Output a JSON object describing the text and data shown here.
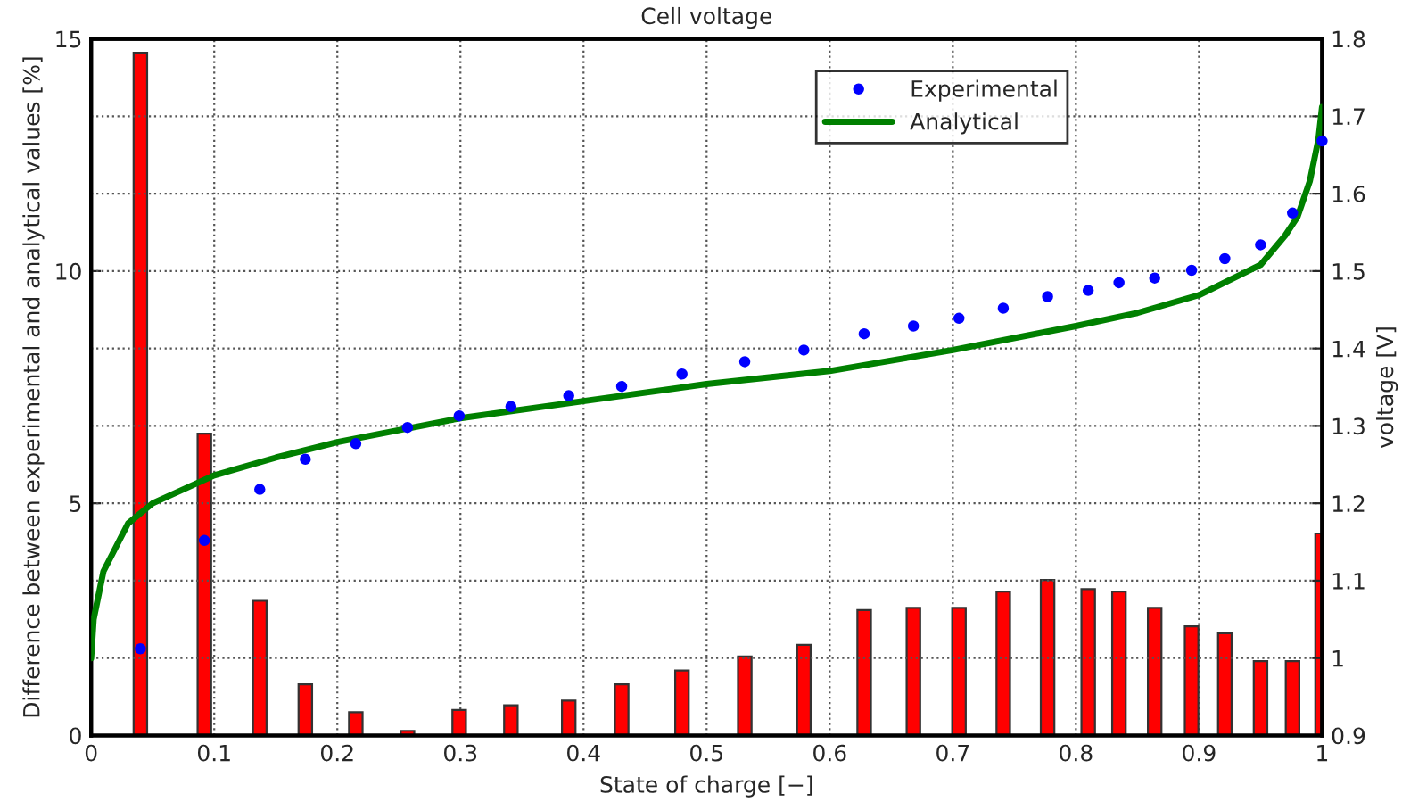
{
  "chart_data": {
    "type": "bar",
    "title": "Cell voltage",
    "xlabel": "State of charge [−]",
    "ylabel": "Difference between experimental and analytical values [%]",
    "y2label": "voltage [V]",
    "x": [
      0.04,
      0.092,
      0.137,
      0.174,
      0.215,
      0.257,
      0.299,
      0.341,
      0.388,
      0.431,
      0.48,
      0.531,
      0.579,
      0.628,
      0.668,
      0.705,
      0.741,
      0.777,
      0.81,
      0.835,
      0.864,
      0.894,
      0.921,
      0.95,
      0.976,
      1.0
    ],
    "series": [
      {
        "color": "#ff0000",
        "values": [
          14.7,
          6.5,
          2.9,
          1.1,
          0.5,
          0.1,
          0.55,
          0.65,
          0.75,
          1.1,
          1.4,
          1.7,
          1.95,
          2.7,
          2.75,
          2.75,
          3.1,
          3.35,
          3.15,
          3.1,
          2.75,
          2.35,
          2.2,
          1.6,
          1.6,
          4.35
        ]
      },
      {
        "type": "scatter",
        "name": "Experimental",
        "axis": "y2",
        "color": "#0000ff",
        "marker": "circle",
        "values": [
          1.012,
          1.152,
          1.218,
          1.257,
          1.277,
          1.298,
          1.313,
          1.325,
          1.339,
          1.351,
          1.367,
          1.383,
          1.398,
          1.419,
          1.429,
          1.439,
          1.452,
          1.467,
          1.475,
          1.485,
          1.491,
          1.501,
          1.516,
          1.534,
          1.575,
          1.668
        ]
      },
      {
        "type": "line",
        "name": "Analytical",
        "axis": "y2",
        "color": "#008000",
        "line_style": "solid",
        "x": [
          0,
          0.002,
          0.01,
          0.03,
          0.05,
          0.1,
          0.15,
          0.2,
          0.3,
          0.4,
          0.5,
          0.6,
          0.7,
          0.8,
          0.85,
          0.9,
          0.95,
          0.97,
          0.98,
          0.99,
          0.997,
          1.0
        ],
        "values": [
          1.0,
          1.05,
          1.112,
          1.174,
          1.2,
          1.236,
          1.259,
          1.279,
          1.31,
          1.332,
          1.354,
          1.371,
          1.398,
          1.429,
          1.446,
          1.469,
          1.508,
          1.546,
          1.57,
          1.616,
          1.67,
          1.712
        ]
      }
    ],
    "xlim": [
      0,
      1
    ],
    "xticks": [
      0,
      0.1,
      0.2,
      0.3,
      0.4,
      0.5,
      0.6,
      0.7,
      0.8,
      0.9,
      1
    ],
    "ylim": [
      0,
      15
    ],
    "yticks": [
      0,
      5,
      10,
      15
    ],
    "y2lim": [
      0.9,
      1.8
    ],
    "y2ticks": [
      0.9,
      1,
      1.1,
      1.2,
      1.3,
      1.4,
      1.5,
      1.6,
      1.7,
      1.8
    ],
    "grid": true,
    "legend": "top right"
  }
}
